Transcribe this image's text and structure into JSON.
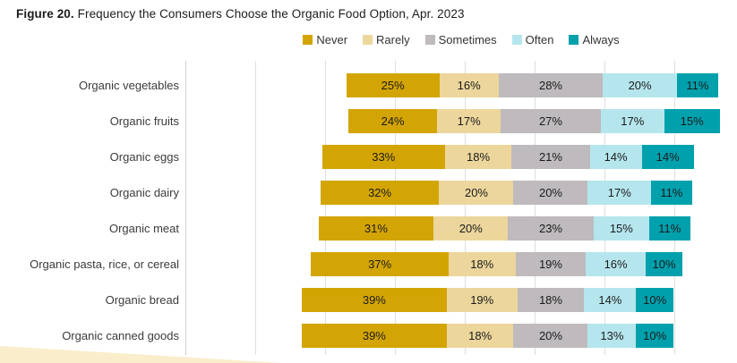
{
  "header": {
    "figure_label": "Figure 20.",
    "title": "Frequency the Consumers Choose the Organic Food Option, Apr. 2023"
  },
  "colors": {
    "never": "#D3A504",
    "rarely": "#ECD69C",
    "sometimes": "#BEBABD",
    "often": "#B5E6ED",
    "always": "#00A1AD",
    "gridline": "#DEDEDE",
    "corner_decoration": "#FAEDCB"
  },
  "chart_data": {
    "type": "bar",
    "subtype": "horizontal-stacked-diverging",
    "title": "Figure 20. Frequency the Consumers Choose the Organic Food Option, Apr. 2023",
    "alignment_note": "rows centered on the midpoint of the Sometimes segment",
    "legend_position": "top",
    "grid": true,
    "value_suffix": "%",
    "categories": [
      "Organic vegetables",
      "Organic fruits",
      "Organic eggs",
      "Organic dairy",
      "Organic meat",
      "Organic pasta, rice, or cereal",
      "Organic bread",
      "Organic canned goods"
    ],
    "series": [
      {
        "name": "Never",
        "color": "#D3A504",
        "values": [
          25,
          24,
          33,
          32,
          31,
          37,
          39,
          39
        ]
      },
      {
        "name": "Rarely",
        "color": "#ECD69C",
        "values": [
          16,
          17,
          18,
          20,
          20,
          18,
          19,
          18
        ]
      },
      {
        "name": "Sometimes",
        "color": "#BEBABD",
        "values": [
          28,
          27,
          21,
          20,
          23,
          19,
          18,
          20
        ]
      },
      {
        "name": "Often",
        "color": "#B5E6ED",
        "values": [
          20,
          17,
          14,
          17,
          15,
          16,
          14,
          13
        ]
      },
      {
        "name": "Always",
        "color": "#00A1AD",
        "values": [
          11,
          15,
          14,
          11,
          11,
          10,
          10,
          10
        ]
      }
    ]
  }
}
